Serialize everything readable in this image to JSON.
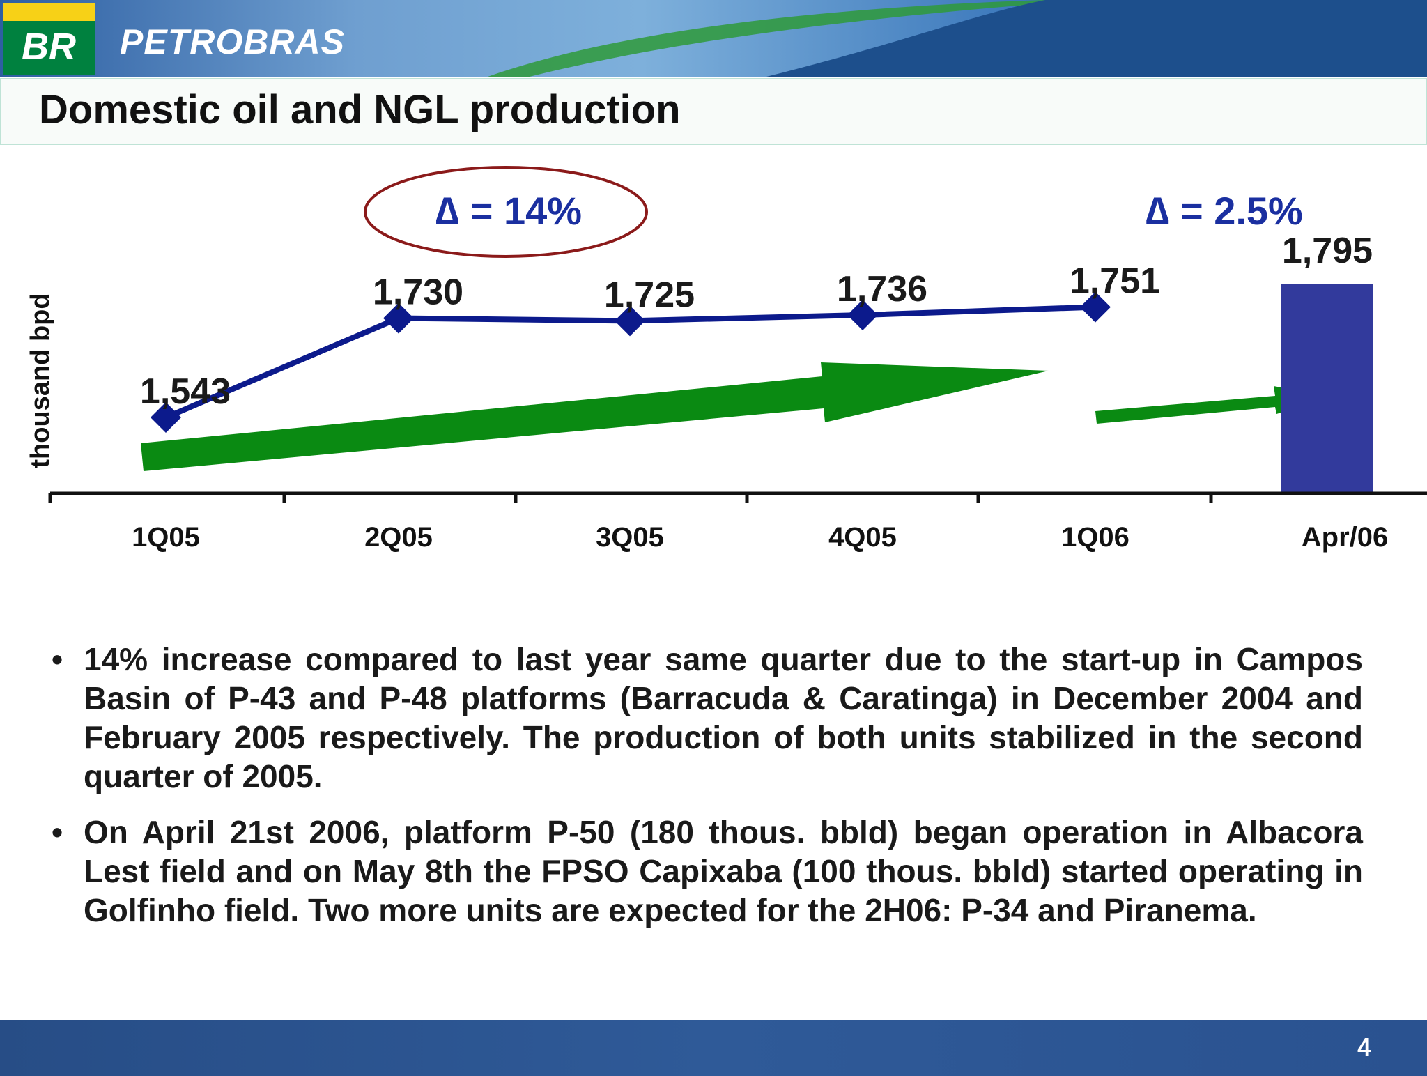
{
  "header": {
    "logo_text": "BR",
    "brand": "PETROBRAS",
    "colors": {
      "logo_green": "#00813f",
      "logo_yellow": "#f7d117",
      "blue": "#2e5fa2"
    }
  },
  "slide": {
    "title": "Domestic oil and NGL production",
    "page_number": "4"
  },
  "annotations": {
    "delta_1": "∆ = 14%",
    "delta_2": "∆ = 2.5%",
    "arrow_color": "#0a8a12",
    "ellipse_color": "#8b1a1a"
  },
  "chart_data": {
    "type": "line",
    "ylabel": "thousand bpd",
    "xlabel": "",
    "categories": [
      "1Q05",
      "2Q05",
      "3Q05",
      "4Q05",
      "1Q06",
      "Apr/06"
    ],
    "ylim": [
      1400,
      1820
    ],
    "series": [
      {
        "type": "line",
        "values": [
          1543,
          1730,
          1725,
          1736,
          1751,
          null
        ],
        "labels": [
          "1,543",
          "1,730",
          "1,725",
          "1,736",
          "1,751",
          ""
        ],
        "color": "#0c1a8c"
      },
      {
        "type": "bar",
        "values": [
          null,
          null,
          null,
          null,
          null,
          1795
        ],
        "labels": [
          "",
          "",
          "",
          "",
          "",
          "1,795"
        ],
        "color": "#323a9c"
      }
    ],
    "grid": false,
    "legend": "none"
  },
  "bullets": [
    "14% increase compared to last year same quarter due to the start-up in Campos Basin of P-43 and P-48 platforms (Barracuda & Caratinga) in December 2004 and February 2005 respectively. The production of both units stabilized in the second quarter of 2005.",
    "On April 21st 2006, platform P-50 (180 thous. bbld) began operation in Albacora Lest field and on May 8th the FPSO Capixaba (100 thous. bbld) started operating in Golfinho field. Two more units are expected for the 2H06: P-34 and Piranema."
  ],
  "bullet_char": "•"
}
